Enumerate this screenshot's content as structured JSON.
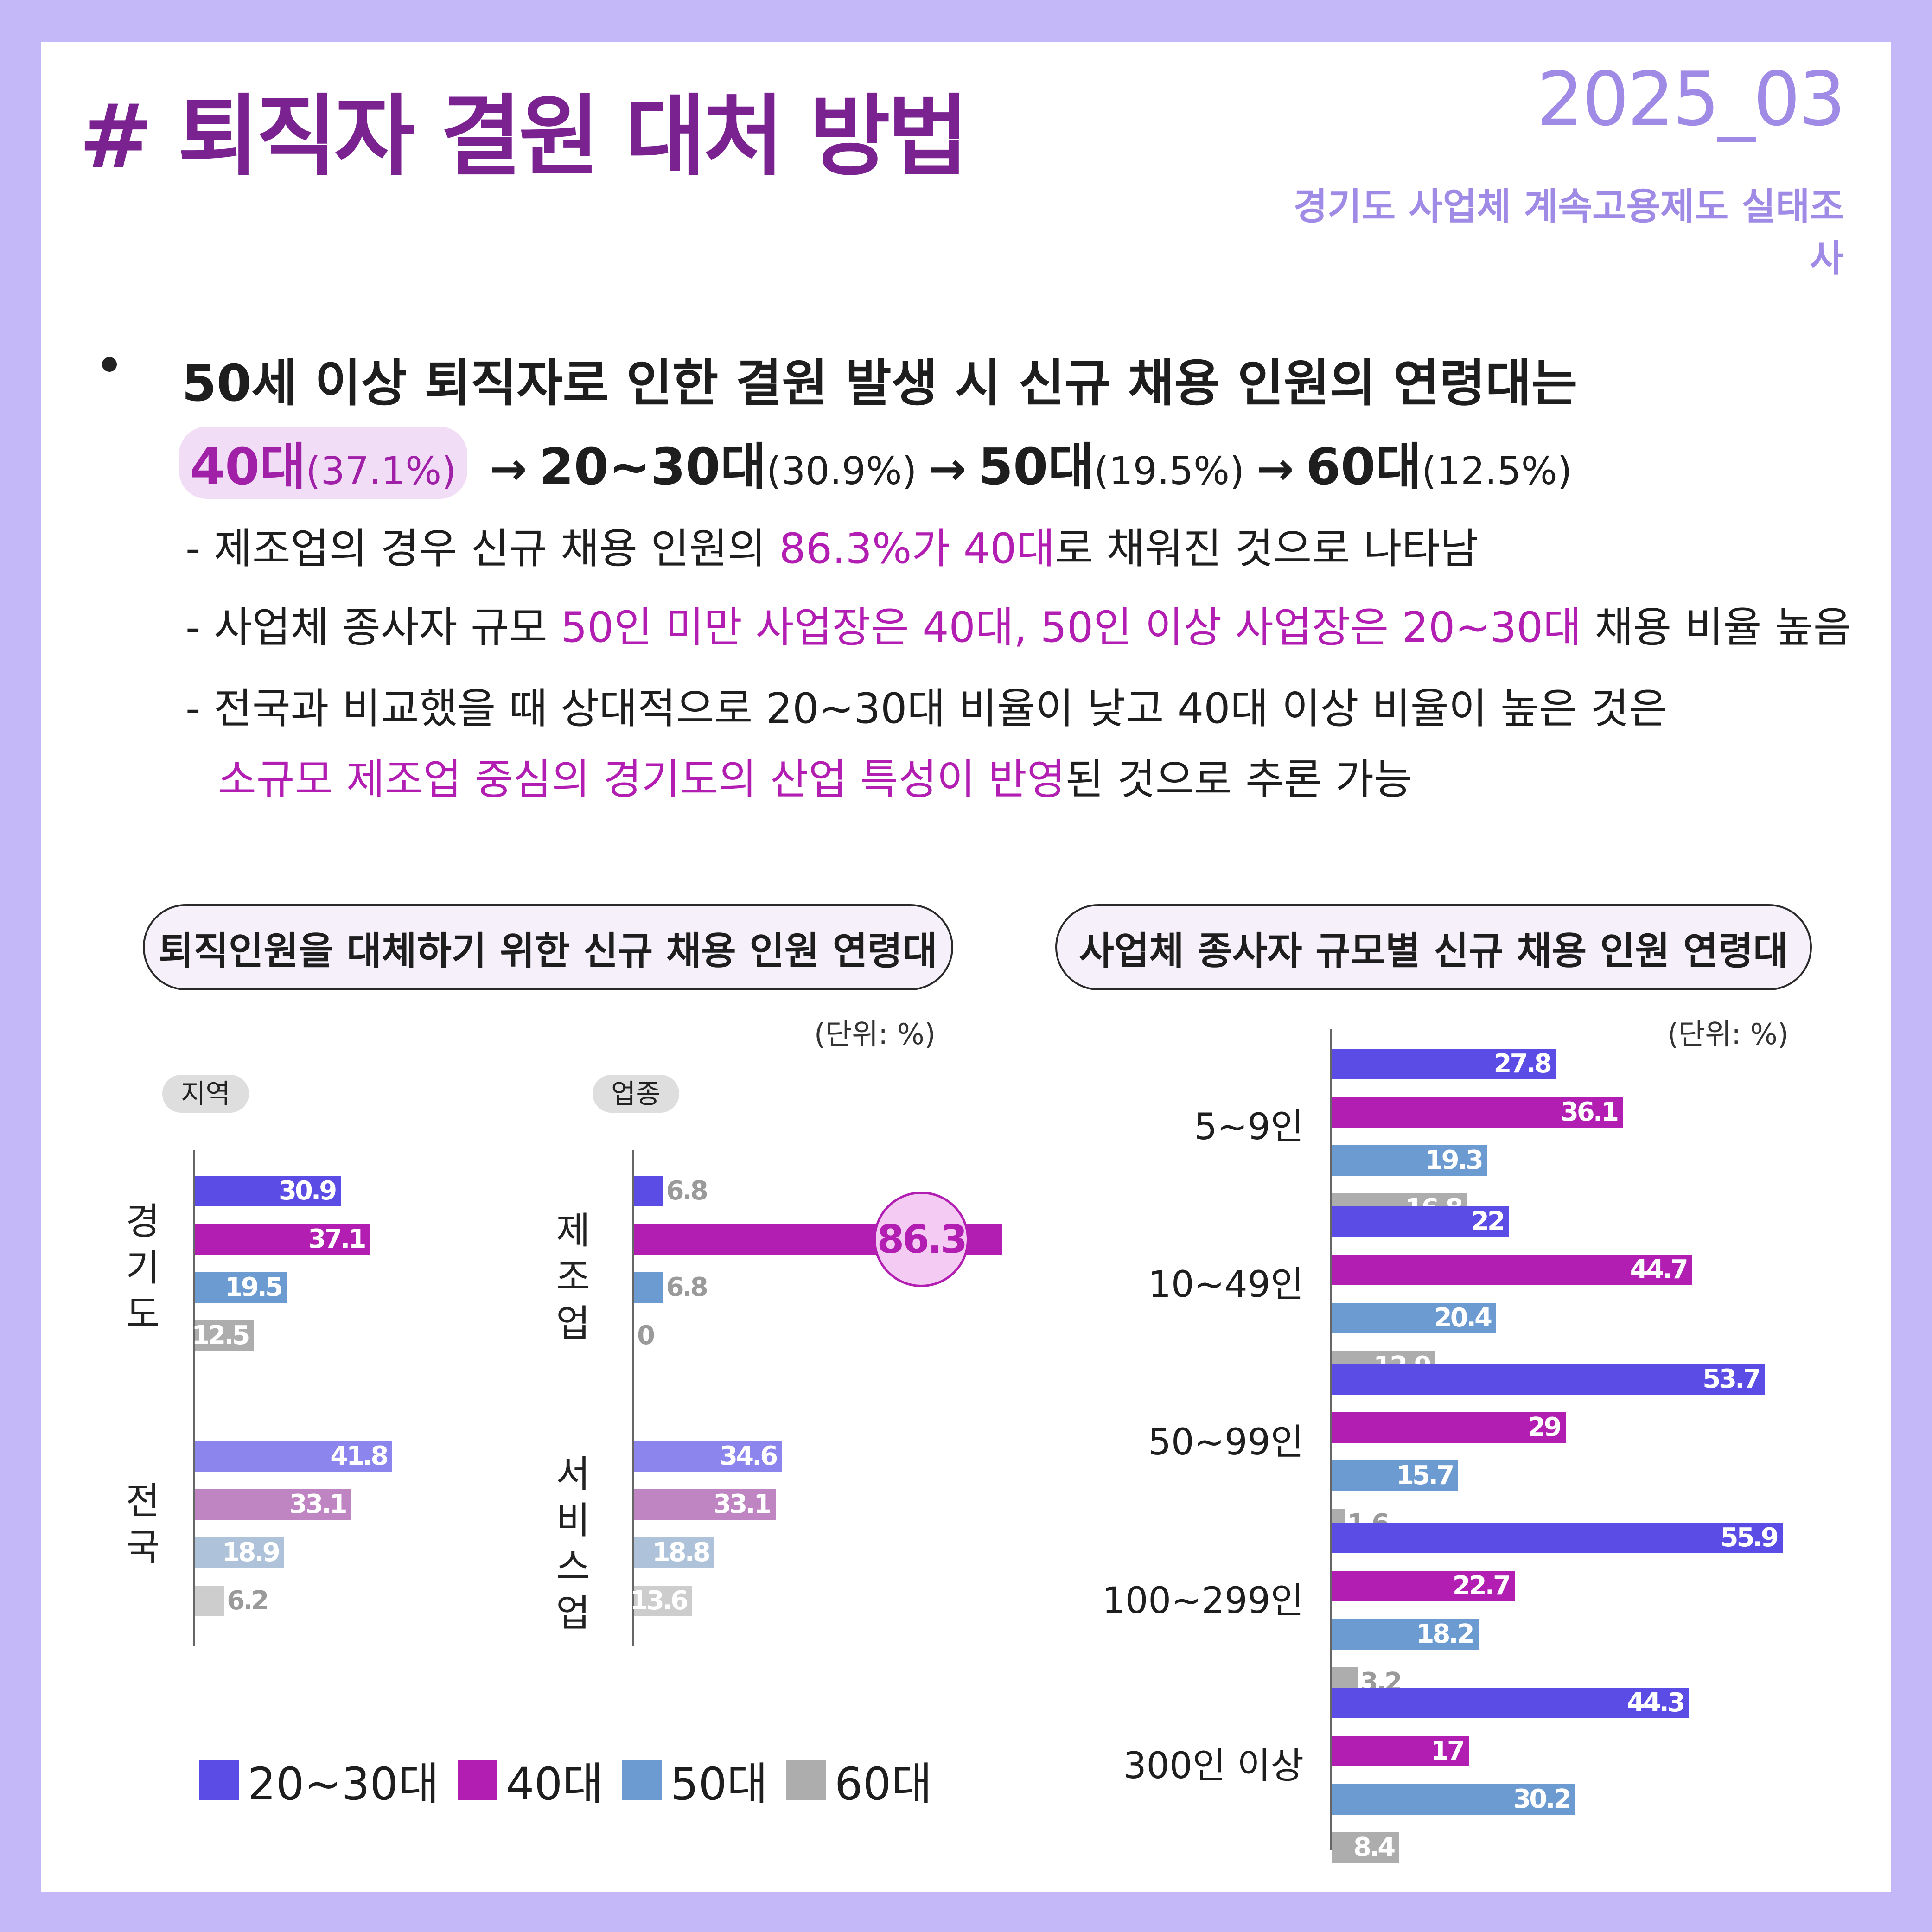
{
  "page": {
    "title": "# 퇴직자 결원 대처 방법",
    "issue": "2025_03",
    "survey_title": "경기도 사업체 계속고용제도 실태조사"
  },
  "summary": {
    "headline": "50세 이상 퇴직자로 인한 결원 발생 시 신규 채용 인원의 연령대는",
    "rank": [
      {
        "label": "40대",
        "pct": "(37.1%)"
      },
      {
        "label": "20~30대",
        "pct": "(30.9%)"
      },
      {
        "label": "50대",
        "pct": "(19.5%)"
      },
      {
        "label": "60대",
        "pct": "(12.5%)"
      }
    ],
    "arrow": "→",
    "line1": {
      "a": "- 제조업의 경우 신규 채용 인원의 ",
      "hl": "86.3%가 40대",
      "b": "로 채워진 것으로 나타남"
    },
    "line2": {
      "a": "- 사업체 종사자 규모 ",
      "hl": "50인 미만 사업장은 40대, 50인 이상 사업장은 20~30대",
      "b": " 채용 비율 높음"
    },
    "line3": {
      "a": "- 전국과 비교했을 때 상대적으로 20~30대 비율이 낮고 40대 이상 비율이 높은 것은"
    },
    "line4": {
      "hl": "소규모 제조업 중심의 경기도의 산업 특성이 반영",
      "b": "된 것으로 추론 가능"
    }
  },
  "colors": {
    "c20_30": "#5b4ce6",
    "c40": "#b21eb2",
    "c50": "#6b9bd0",
    "c60": "#adadad",
    "c20_30_light": "#8c85ee",
    "c40_light": "#bf84c2",
    "c50_light": "#aec3d9",
    "c60_light": "#cdcdcd",
    "highlight": "#b21eb2"
  },
  "legend": [
    "20~30대",
    "40대",
    "50대",
    "60대"
  ],
  "chart_data": [
    {
      "type": "bar",
      "orientation": "horizontal",
      "title": "퇴직인원을 대체하기 위한 신규 채용 인원 연령대",
      "unit": "(단위: %)",
      "panel": "지역",
      "categories": [
        "경기도",
        "전국"
      ],
      "series": [
        {
          "name": "20~30대",
          "values": [
            30.9,
            41.8
          ]
        },
        {
          "name": "40대",
          "values": [
            37.1,
            33.1
          ]
        },
        {
          "name": "50대",
          "values": [
            19.5,
            18.9
          ]
        },
        {
          "name": "60대",
          "values": [
            12.5,
            6.2
          ]
        }
      ],
      "value_labels": [
        [
          "30.9",
          "37.1",
          "19.5",
          "12.5"
        ],
        [
          "41.8",
          "33.1",
          "18.9",
          "6.2"
        ]
      ]
    },
    {
      "type": "bar",
      "orientation": "horizontal",
      "panel": "업종",
      "categories": [
        "제조업",
        "서비스업"
      ],
      "series": [
        {
          "name": "20~30대",
          "values": [
            6.8,
            34.6
          ]
        },
        {
          "name": "40대",
          "values": [
            86.3,
            33.1
          ]
        },
        {
          "name": "50대",
          "values": [
            6.8,
            18.8
          ]
        },
        {
          "name": "60대",
          "values": [
            0,
            13.6
          ]
        }
      ],
      "value_labels": [
        [
          "6.8",
          "86.3",
          "6.8",
          "0"
        ],
        [
          "34.6",
          "33.1",
          "18.8",
          "13.6"
        ]
      ]
    },
    {
      "type": "bar",
      "orientation": "horizontal",
      "title": "사업체 종사자 규모별 신규 채용 인원 연령대",
      "unit": "(단위: %)",
      "categories": [
        "5~9인",
        "10~49인",
        "50~99인",
        "100~299인",
        "300인 이상"
      ],
      "series": [
        {
          "name": "20~30대",
          "values": [
            27.8,
            22,
            53.7,
            55.9,
            44.3
          ]
        },
        {
          "name": "40대",
          "values": [
            36.1,
            44.7,
            29,
            22.7,
            17
          ]
        },
        {
          "name": "50대",
          "values": [
            19.3,
            20.4,
            15.7,
            18.2,
            30.2
          ]
        },
        {
          "name": "60대",
          "values": [
            16.8,
            12.9,
            1.6,
            3.2,
            8.4
          ]
        }
      ],
      "value_labels": [
        [
          "27.8",
          "36.1",
          "19.3",
          "16.8"
        ],
        [
          "22",
          "44.7",
          "20.4",
          "12.9"
        ],
        [
          "53.7",
          "29",
          "15.7",
          "1.6"
        ],
        [
          "55.9",
          "22.7",
          "18.2",
          "3.2"
        ],
        [
          "44.3",
          "17",
          "30.2",
          "8.4"
        ]
      ]
    }
  ],
  "left_chart": {
    "panel_region": "지역",
    "panel_industry": "업종",
    "region_labels": [
      "경\n기\n도",
      "전\n국"
    ],
    "industry_labels": [
      "제\n조\n업",
      "서\n비\n스\n업"
    ]
  }
}
